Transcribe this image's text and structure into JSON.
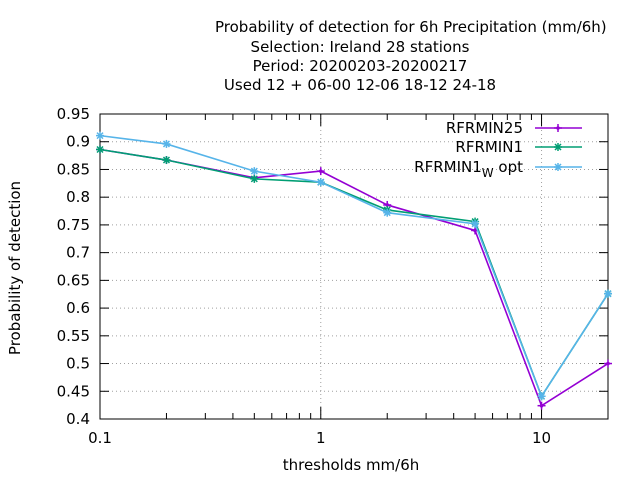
{
  "chart_data": {
    "type": "line",
    "title_lines": [
      "Probability of detection  for 6h Precipitation (mm/6h)",
      "Selection: Ireland      28 stations",
      "Period: 20200203-20200217",
      "Used  12 + 06-00 12-06 18-12 24-18"
    ],
    "xlabel": "thresholds mm/6h",
    "ylabel": "Probability of detection",
    "xscale": "log",
    "xlim": [
      0.1,
      20
    ],
    "ylim": [
      0.4,
      0.95
    ],
    "x_ticks": [
      "0.1",
      "1",
      "10"
    ],
    "y_ticks": [
      "0.4",
      "0.45",
      "0.5",
      "0.55",
      "0.6",
      "0.65",
      "0.7",
      "0.75",
      "0.8",
      "0.85",
      "0.9",
      "0.95"
    ],
    "grid": true,
    "legend_position": "top-right",
    "x": [
      0.1,
      0.2,
      0.5,
      1,
      2,
      5,
      10,
      20
    ],
    "series": [
      {
        "name": "RFRMIN25",
        "color": "#9400d3",
        "marker": "plus",
        "values": [
          0.886,
          0.867,
          0.835,
          0.847,
          0.786,
          0.74,
          0.424,
          0.5
        ]
      },
      {
        "name": "RFRMIN1",
        "color": "#009e73",
        "marker": "star",
        "values": [
          0.886,
          0.867,
          0.833,
          0.827,
          0.777,
          0.756,
          0.441,
          0.626
        ]
      },
      {
        "name": "RFRMIN1",
        "name_subscript": "W",
        "name_suffix": " opt",
        "color": "#56b4e9",
        "marker": "star",
        "values": [
          0.911,
          0.896,
          0.847,
          0.827,
          0.772,
          0.752,
          0.441,
          0.626
        ]
      }
    ]
  }
}
